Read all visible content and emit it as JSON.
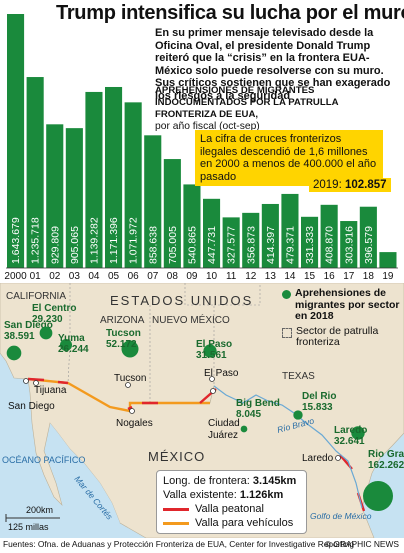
{
  "title": "Trump intensifica su lucha por el muro",
  "intro": "En su primer mensaje televisado desde la Oficina Oval, el presidente Donald Trump reiteró que la “crisis” en la frontera EUA-México solo puede resolverse con su muro. Sus críticos sostienen que se han exagerado los riesgos a la seguridad",
  "subhead": "Aprehensiones de Migrantes Indocumentados por la Patrulla Fronteriza de EUA,",
  "subhead2": "por año fiscal (oct-sep)",
  "callout": "La cifra de cruces fronterizos ilegales descendió de 1,6 millones en 2000 a menos de 400.000 el año pasado",
  "last_value_label": "2019:",
  "last_value": "102.857",
  "colors": {
    "bar": "#1a8a3c",
    "bar_last": "#1a8a3c",
    "highlight": "#ffd400",
    "land": "#ede3cf",
    "water": "#c6e2f2",
    "circle": "#1a8a3c",
    "fence_ped": "#e0262c",
    "fence_veh": "#f39a1e"
  },
  "chart_data": {
    "type": "bar",
    "categories": [
      "2000",
      "01",
      "02",
      "03",
      "04",
      "05",
      "06",
      "07",
      "08",
      "09",
      "10",
      "11",
      "12",
      "13",
      "14",
      "15",
      "16",
      "17",
      "18",
      "19"
    ],
    "value_labels": [
      "1.643.679",
      "1.235.718",
      "929.809",
      "905.065",
      "1.139.282",
      "1.171.396",
      "1.071.972",
      "858.638",
      "705.005",
      "540.865",
      "447.731",
      "327.577",
      "356.873",
      "414.397",
      "479.371",
      "331.333",
      "408.870",
      "303.916",
      "396.579",
      ""
    ],
    "values": [
      1643679,
      1235718,
      929809,
      905065,
      1139282,
      1171396,
      1071972,
      858638,
      705005,
      540865,
      447731,
      327577,
      356873,
      414397,
      479371,
      331333,
      408870,
      303916,
      396579,
      102857
    ]
  },
  "map": {
    "countries": {
      "us": "ESTADOS UNIDOS",
      "mx": "MÉXICO"
    },
    "states": [
      "CALIFORNIA",
      "ARIZONA",
      "NUEVO MÉXICO",
      "TEXAS"
    ],
    "water": [
      "OCÉANO PACÍFICO",
      "Mar de Cortés",
      "Golfo de México",
      "Río Bravo"
    ],
    "cities": [
      "San Diego",
      "Tijuana",
      "Tucson",
      "Nogales",
      "El Paso",
      "Ciudad Juárez",
      "Laredo"
    ],
    "sector_legend": {
      "circle_label": "Aprehensiones de migrantes por sector en 2018",
      "sector_label": "Sector de patrulla fronteriza"
    },
    "sectors": [
      {
        "name": "San Diego",
        "value": "38.591"
      },
      {
        "name": "El Centro",
        "value": "29.230"
      },
      {
        "name": "Yuma",
        "value": "26.244"
      },
      {
        "name": "Tucson",
        "value": "52.172"
      },
      {
        "name": "El Paso",
        "value": "31.561"
      },
      {
        "name": "Big Bend",
        "value": "8.045"
      },
      {
        "name": "Del Rio",
        "value": "15.833"
      },
      {
        "name": "Laredo",
        "value": "32.641"
      },
      {
        "name": "Rio Grande",
        "value": "162.262"
      }
    ],
    "legend": {
      "length_label": "Long. de frontera:",
      "length_value": "3.145km",
      "fence_label": "Valla existente:",
      "fence_value": "1.126km",
      "ped": "Valla peatonal",
      "veh": "Valla para vehículos"
    },
    "scale": {
      "km": "200km",
      "mi": "125 millas"
    }
  },
  "footer": {
    "source": "Fuentes: Ofna. de Aduanas y Protección Fronteriza de EUA, Center for Investigative Reporting",
    "credit": "© GRAPHIC NEWS"
  }
}
